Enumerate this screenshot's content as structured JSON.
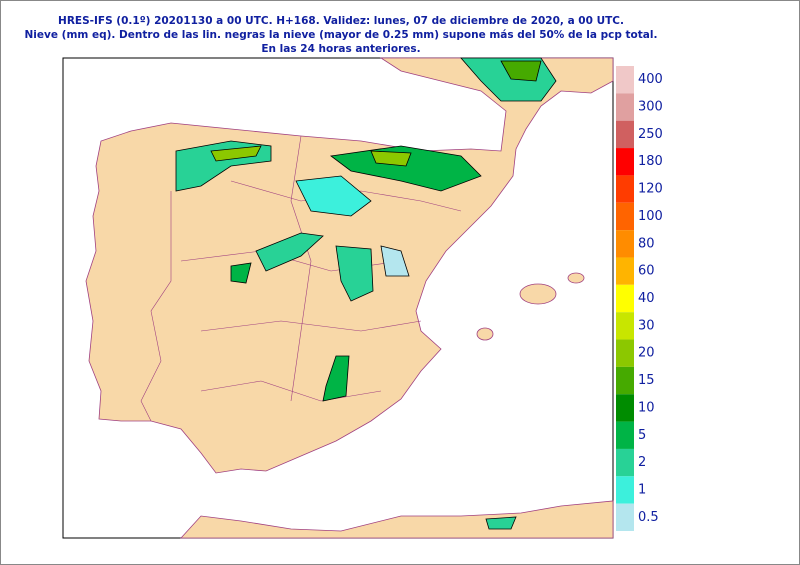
{
  "header": {
    "lines": [
      "HRES-IFS (0.1º) 20201130 a 00 UTC.  H+168. Validez: lunes, 07 de diciembre de 2020,  a  00 UTC.",
      "Nieve (mm eq). Dentro de las lin. negras la nieve (mayor de 0.25 mm) supone más del 50% de la pcp total.",
      "En las 24 horas anteriores."
    ]
  },
  "legend": {
    "items": [
      {
        "label": "400",
        "color": "#f0c8c8"
      },
      {
        "label": "300",
        "color": "#e0a0a0"
      },
      {
        "label": "250",
        "color": "#d06060"
      },
      {
        "label": "180",
        "color": "#ff0000"
      },
      {
        "label": "120",
        "color": "#ff3c00"
      },
      {
        "label": "100",
        "color": "#ff6400"
      },
      {
        "label": "80",
        "color": "#ff8c00"
      },
      {
        "label": "60",
        "color": "#ffb400"
      },
      {
        "label": "40",
        "color": "#ffff00"
      },
      {
        "label": "30",
        "color": "#c8e600"
      },
      {
        "label": "20",
        "color": "#8cc800"
      },
      {
        "label": "15",
        "color": "#46aa00"
      },
      {
        "label": "10",
        "color": "#008c00"
      },
      {
        "label": "5",
        "color": "#00b446"
      },
      {
        "label": "2",
        "color": "#28d296"
      },
      {
        "label": "1",
        "color": "#3cf0dc"
      },
      {
        "label": "0.5",
        "color": "#b4e6ee"
      }
    ]
  }
}
